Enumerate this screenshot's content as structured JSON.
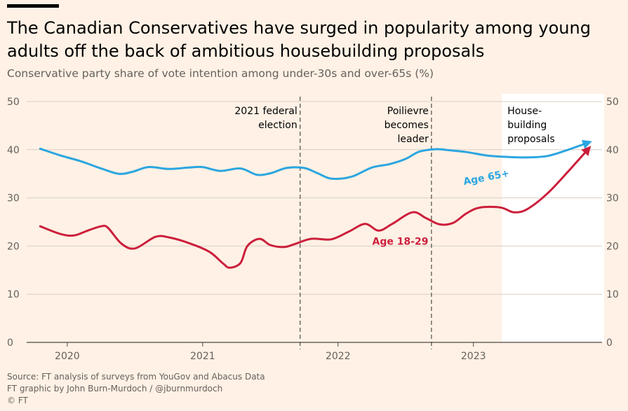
{
  "title": "The Canadian Conservatives have surged in popularity among young adults off the back of ambitious housebuilding proposals",
  "subtitle": "Conservative party share of vote intention among under-30s and over-65s (%)",
  "footer": {
    "source": "Source: FT analysis of surveys from YouGov and Abacus Data",
    "credit": "FT graphic by John Burn-Murdoch / @jburnmurdoch",
    "copyright": "© FT"
  },
  "colors": {
    "background": "#fff1e5",
    "highlight": "#ffffff",
    "age65": "#2ba6e0",
    "age1829": "#cc1f3c",
    "grid": "#d9cfc5"
  },
  "chart_data": {
    "type": "line",
    "ylim": [
      0,
      50
    ],
    "yticks": [
      "0",
      "10",
      "20",
      "30",
      "40",
      "50"
    ],
    "xlim": [
      2019.7,
      2023.95
    ],
    "xticks": [
      {
        "value": 2020,
        "label": "2020"
      },
      {
        "value": 2021,
        "label": "2021"
      },
      {
        "value": 2022,
        "label": "2022"
      },
      {
        "value": 2023,
        "label": "2023"
      }
    ],
    "grid": true,
    "shaded_period": {
      "from": 2023.21,
      "to": 2023.95,
      "label": [
        "House-",
        "building",
        "proposals"
      ]
    },
    "events": [
      {
        "x": 2021.72,
        "label": [
          "2021 federal",
          "election"
        ]
      },
      {
        "x": 2022.69,
        "label": [
          "Poilievre",
          "becomes",
          "leader"
        ]
      }
    ],
    "series": [
      {
        "name": "Age 65+",
        "color": "#2ba6e0",
        "label_pos": {
          "x": 2023.1,
          "y": 33.6
        },
        "x": [
          2019.8,
          2019.95,
          2020.1,
          2020.25,
          2020.38,
          2020.48,
          2020.6,
          2020.75,
          2020.9,
          2021.0,
          2021.13,
          2021.28,
          2021.4,
          2021.5,
          2021.62,
          2021.75,
          2021.85,
          2021.95,
          2022.1,
          2022.25,
          2022.38,
          2022.5,
          2022.6,
          2022.72,
          2022.82,
          2022.95,
          2023.1,
          2023.25,
          2023.4,
          2023.55,
          2023.7,
          2023.85
        ],
        "values": [
          40.2,
          38.8,
          37.6,
          36.1,
          35.0,
          35.4,
          36.4,
          36.0,
          36.3,
          36.4,
          35.6,
          36.1,
          34.8,
          35.1,
          36.2,
          36.2,
          35.1,
          34.0,
          34.4,
          36.3,
          37.0,
          38.1,
          39.6,
          40.1,
          39.9,
          39.5,
          38.8,
          38.5,
          38.4,
          38.7,
          40.0,
          41.5
        ]
      },
      {
        "name": "Age 18-29",
        "color": "#cc1f3c",
        "label_pos": {
          "x": 2022.46,
          "y": 20.3
        },
        "x": [
          2019.8,
          2019.95,
          2020.05,
          2020.15,
          2020.25,
          2020.3,
          2020.4,
          2020.5,
          2020.65,
          2020.75,
          2020.9,
          2021.05,
          2021.15,
          2021.2,
          2021.28,
          2021.33,
          2021.42,
          2021.5,
          2021.6,
          2021.68,
          2021.8,
          2021.95,
          2022.08,
          2022.2,
          2022.3,
          2022.4,
          2022.55,
          2022.65,
          2022.75,
          2022.85,
          2022.95,
          2023.05,
          2023.2,
          2023.3,
          2023.4,
          2023.55,
          2023.7,
          2023.85
        ],
        "values": [
          24.1,
          22.5,
          22.2,
          23.2,
          24.1,
          23.8,
          20.5,
          19.5,
          21.9,
          21.8,
          20.6,
          18.8,
          16.4,
          15.5,
          16.5,
          20.0,
          21.5,
          20.2,
          19.8,
          20.4,
          21.5,
          21.4,
          23.0,
          24.6,
          23.2,
          24.6,
          27.0,
          25.8,
          24.5,
          24.8,
          26.8,
          28.0,
          28.0,
          27.0,
          27.7,
          31.0,
          35.5,
          40.2
        ]
      }
    ]
  }
}
